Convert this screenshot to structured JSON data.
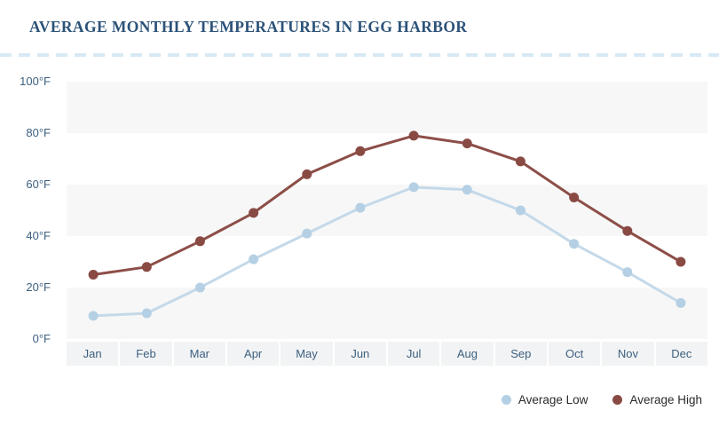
{
  "header": {
    "title": "AVERAGE MONTHLY TEMPERATURES IN EGG HARBOR"
  },
  "chart_data": {
    "type": "line",
    "title": "AVERAGE MONTHLY TEMPERATURES IN EGG HARBOR",
    "categories": [
      "Jan",
      "Feb",
      "Mar",
      "Apr",
      "May",
      "Jun",
      "Jul",
      "Aug",
      "Sep",
      "Oct",
      "Nov",
      "Dec"
    ],
    "series": [
      {
        "name": "Average Low",
        "color": "#b5d0e4",
        "line_color": "#c4d9e9",
        "values": [
          9,
          10,
          20,
          31,
          41,
          51,
          59,
          58,
          50,
          37,
          26,
          14
        ]
      },
      {
        "name": "Average High",
        "color": "#8a4a44",
        "line_color": "#8d4e48",
        "values": [
          25,
          28,
          38,
          49,
          64,
          73,
          79,
          76,
          69,
          55,
          42,
          30
        ]
      }
    ],
    "unit": "°F",
    "y_ticks": [
      "0°F",
      "20°F",
      "40°F",
      "60°F",
      "80°F",
      "100°F"
    ],
    "ylim": [
      0,
      100
    ],
    "y_tick_step": 20,
    "grid": "alternating-horizontal-bands",
    "legend_position": "bottom-right"
  },
  "legend": {
    "items": [
      {
        "label": "Average Low",
        "color": "#b5d0e4"
      },
      {
        "label": "Average High",
        "color": "#8a4a44"
      }
    ]
  },
  "colors": {
    "background": "#ffffff",
    "title": "#2c5278",
    "axis_label": "#3d6080",
    "divider_dash": "#d6e9f5",
    "band_gray": "#f7f7f7",
    "month_cell_bg": "#f2f3f4",
    "legend_text": "#2b2b2b",
    "high_dot": "#8a4a44",
    "high_line": "#8d4e48",
    "low_dot": "#b5d0e4",
    "low_line": "#c4d9e9"
  }
}
